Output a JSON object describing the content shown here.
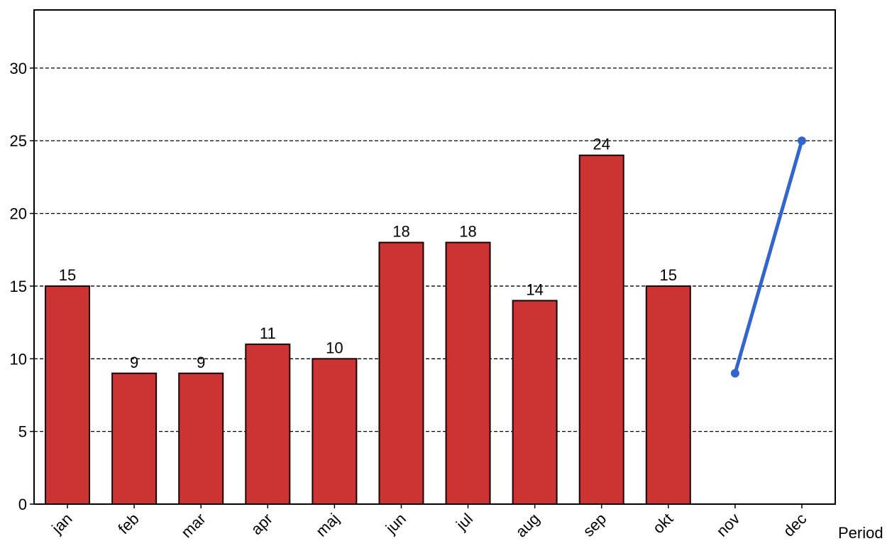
{
  "chart_data": {
    "type": "bar",
    "title": "",
    "xlabel": "Period",
    "ylabel": "",
    "categories": [
      "jan",
      "feb",
      "mar",
      "apr",
      "maj",
      "jun",
      "jul",
      "aug",
      "sep",
      "okt",
      "nov",
      "dec"
    ],
    "ylim": [
      0,
      34
    ],
    "yticks": [
      0,
      5,
      10,
      15,
      20,
      25,
      30
    ],
    "grid": true,
    "series": [
      {
        "type": "bar",
        "color": "#cc3333",
        "values": [
          15,
          9,
          9,
          11,
          10,
          18,
          18,
          14,
          24,
          15,
          null,
          null
        ],
        "labels": [
          "15",
          "9",
          "9",
          "11",
          "10",
          "18",
          "18",
          "14",
          "24",
          "15",
          "",
          ""
        ]
      },
      {
        "type": "line",
        "color": "#3366cc",
        "values": [
          null,
          null,
          null,
          null,
          null,
          null,
          null,
          null,
          null,
          null,
          9,
          25
        ]
      }
    ]
  }
}
